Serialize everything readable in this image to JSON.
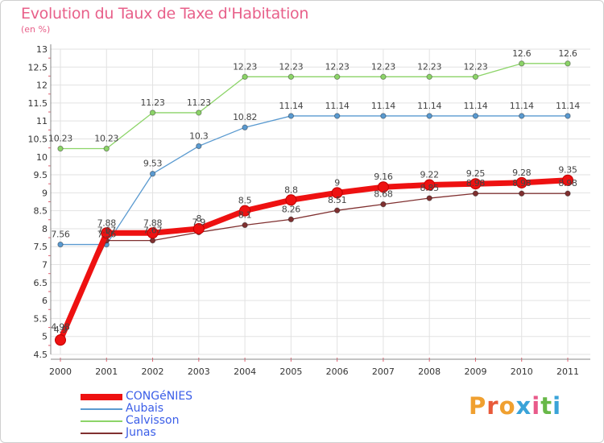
{
  "title": "Evolution du Taux de Taxe d'Habitation",
  "subtitle": "(en %)",
  "brand": {
    "logo_letters": [
      "P",
      "r",
      "o",
      "x",
      "i",
      "t",
      "i"
    ],
    "logo_colors": [
      "#f0a030",
      "#e85a3a",
      "#f0a030",
      "#3aa3d8",
      "#e85a8a",
      "#68b848",
      "#3aa3d8"
    ]
  },
  "chart_data": {
    "type": "line",
    "x": [
      "2000",
      "2001",
      "2002",
      "2003",
      "2004",
      "2005",
      "2006",
      "2007",
      "2008",
      "2009",
      "2010",
      "2011"
    ],
    "ylim": [
      4.5,
      13
    ],
    "yticks": [
      "4.5",
      "5",
      "5.5",
      "6",
      "6.5",
      "7",
      "7.5",
      "8",
      "8.5",
      "9",
      "9.5",
      "10",
      "10.5",
      "11",
      "11.5",
      "12",
      "12.5",
      "13"
    ],
    "grid": true,
    "legend_position": "bottom-left",
    "series": [
      {
        "name": "Calvisson",
        "color": "#8cd468",
        "values": [
          10.23,
          10.23,
          11.23,
          11.23,
          12.23,
          12.23,
          12.23,
          12.23,
          12.23,
          12.23,
          12.6,
          12.6
        ],
        "labels": [
          "10.23",
          "10.23",
          "11.23",
          "11.23",
          "12.23",
          "12.23",
          "12.23",
          "12.23",
          "12.23",
          "12.23",
          "12.6",
          "12.6"
        ]
      },
      {
        "name": "Aubais",
        "color": "#5a9ad0",
        "values": [
          7.56,
          7.56,
          9.53,
          10.3,
          10.82,
          11.14,
          11.14,
          11.14,
          11.14,
          11.14,
          11.14,
          11.14
        ],
        "labels": [
          "7.56",
          "7.56",
          "9.53",
          "10.3",
          "10.82",
          "11.14",
          "11.14",
          "11.14",
          "11.14",
          "11.14",
          "11.14",
          "11.14"
        ]
      },
      {
        "name": "Junas",
        "color": "#803030",
        "values": [
          4.98,
          7.67,
          7.67,
          7.9,
          8.1,
          8.26,
          8.51,
          8.68,
          8.85,
          8.98,
          8.98,
          8.98
        ],
        "labels": [
          "4.98",
          "7.67",
          "7.67",
          "7.9",
          "8.1",
          "8.26",
          "8.51",
          "8.68",
          "8.85",
          "8.98",
          "8.98",
          "8.98"
        ]
      },
      {
        "name": "CONGéNIES",
        "color": "#ee1111",
        "values": [
          4.9,
          7.88,
          7.88,
          8,
          8.5,
          8.8,
          9,
          9.16,
          9.22,
          9.25,
          9.28,
          9.35
        ],
        "labels": [
          "4.9",
          "7.88",
          "7.88",
          "8",
          "8.5",
          "8.8",
          "9",
          "9.16",
          "9.22",
          "9.25",
          "9.28",
          "9.35"
        ]
      }
    ],
    "legend_order": [
      "CONGéNIES",
      "Aubais",
      "Calvisson",
      "Junas"
    ]
  }
}
